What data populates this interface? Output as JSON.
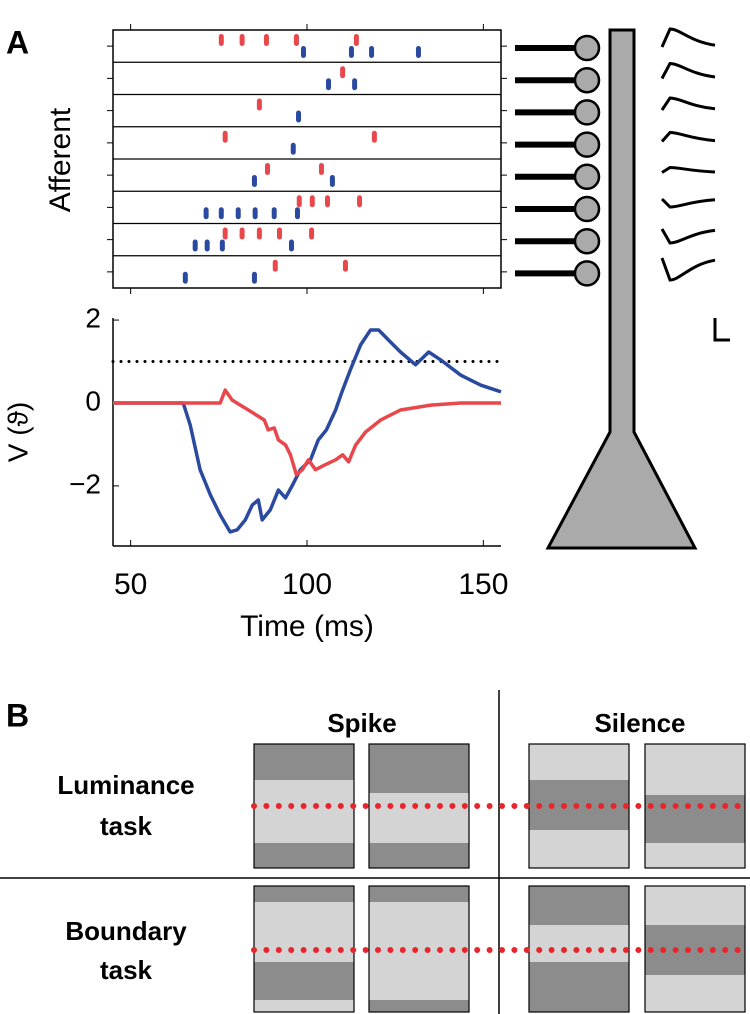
{
  "labels": {
    "a": "A",
    "b": "B"
  },
  "chart_data": [
    {
      "type": "raster",
      "y_label": "Afferent",
      "xlim": [
        45,
        155
      ],
      "xticks": [
        50,
        100,
        150
      ],
      "series": [
        {
          "color": "#e8474c",
          "rows": [
            [
              75.7,
              81.6,
              88.5,
              97.0,
              114.0
            ],
            [
              110.1
            ],
            [
              86.5
            ],
            [
              76.8,
              119.1
            ],
            [
              88.8,
              104.1
            ],
            [
              97.8,
              101.5,
              105.8,
              114.9
            ],
            [
              76.8,
              81.6,
              86.5,
              92.2,
              101.3
            ],
            [
              91.0,
              110.9
            ]
          ]
        },
        {
          "color": "#2a4aa0",
          "rows": [
            [
              99.0,
              112.6,
              118.3,
              131.6
            ],
            [
              106.1,
              113.5
            ],
            [
              97.6
            ],
            [
              96.1
            ],
            [
              85.1,
              107.2
            ],
            [
              71.4,
              75.7,
              80.5,
              85.3,
              90.7,
              97.3
            ],
            [
              68.3,
              71.7,
              76.0,
              95.6
            ],
            [
              65.5,
              85.1
            ]
          ]
        }
      ]
    },
    {
      "type": "line",
      "y_label": "V (ϑ)",
      "x_label": "Time (ms)",
      "xlim": [
        45,
        155
      ],
      "xticks": [
        50,
        100,
        150
      ],
      "ylim": [
        -3.45,
        2.05
      ],
      "yticks": [
        2,
        0,
        {
          "value": -2,
          "label": "−2"
        }
      ],
      "threshold": 1,
      "series": [
        {
          "color": "#2a4aa0",
          "x": [
            45,
            64.9,
            66.9,
            69.7,
            72.6,
            75.4,
            78.2,
            80.2,
            82.5,
            84.5,
            86.2,
            87.3,
            89.6,
            91.9,
            93.9,
            95.9,
            98.1,
            101.0,
            103.2,
            105.5,
            108.1,
            110.1,
            112.3,
            115.2,
            118.0,
            120.3,
            123.1,
            126.5,
            130.8,
            134.5,
            137.9,
            143.6,
            149.3,
            155
          ],
          "values": [
            0,
            0,
            -0.53,
            -1.61,
            -2.22,
            -2.7,
            -3.11,
            -3.06,
            -2.82,
            -2.46,
            -2.34,
            -2.82,
            -2.58,
            -2.1,
            -2.29,
            -1.98,
            -1.61,
            -1.37,
            -0.89,
            -0.65,
            -0.17,
            0.31,
            0.8,
            1.4,
            1.76,
            1.76,
            1.52,
            1.23,
            0.92,
            1.23,
            1.04,
            0.67,
            0.43,
            0.27
          ]
        },
        {
          "color": "#e8474c",
          "x": [
            45,
            75.4,
            76.8,
            78.8,
            81.1,
            83.4,
            85.6,
            87.9,
            89.0,
            90.7,
            91.9,
            93.9,
            95.3,
            97.0,
            98.7,
            100.4,
            102.4,
            105.2,
            108.1,
            110.1,
            111.8,
            113.8,
            116.6,
            120.9,
            126.5,
            135.1,
            143.6,
            155
          ],
          "values": [
            0,
            0,
            0.31,
            0.07,
            -0.05,
            -0.17,
            -0.29,
            -0.41,
            -0.65,
            -0.6,
            -0.89,
            -1.01,
            -1.25,
            -1.73,
            -1.61,
            -1.37,
            -1.61,
            -1.49,
            -1.37,
            -1.25,
            -1.42,
            -1.01,
            -0.7,
            -0.41,
            -0.17,
            -0.05,
            0,
            0
          ]
        }
      ]
    }
  ],
  "panel_b": {
    "columns": [
      "Spike",
      "Silence"
    ],
    "rows": [
      {
        "lines": [
          "Luminance",
          "task"
        ]
      },
      {
        "lines": [
          "Boundary",
          "task"
        ]
      }
    ]
  }
}
